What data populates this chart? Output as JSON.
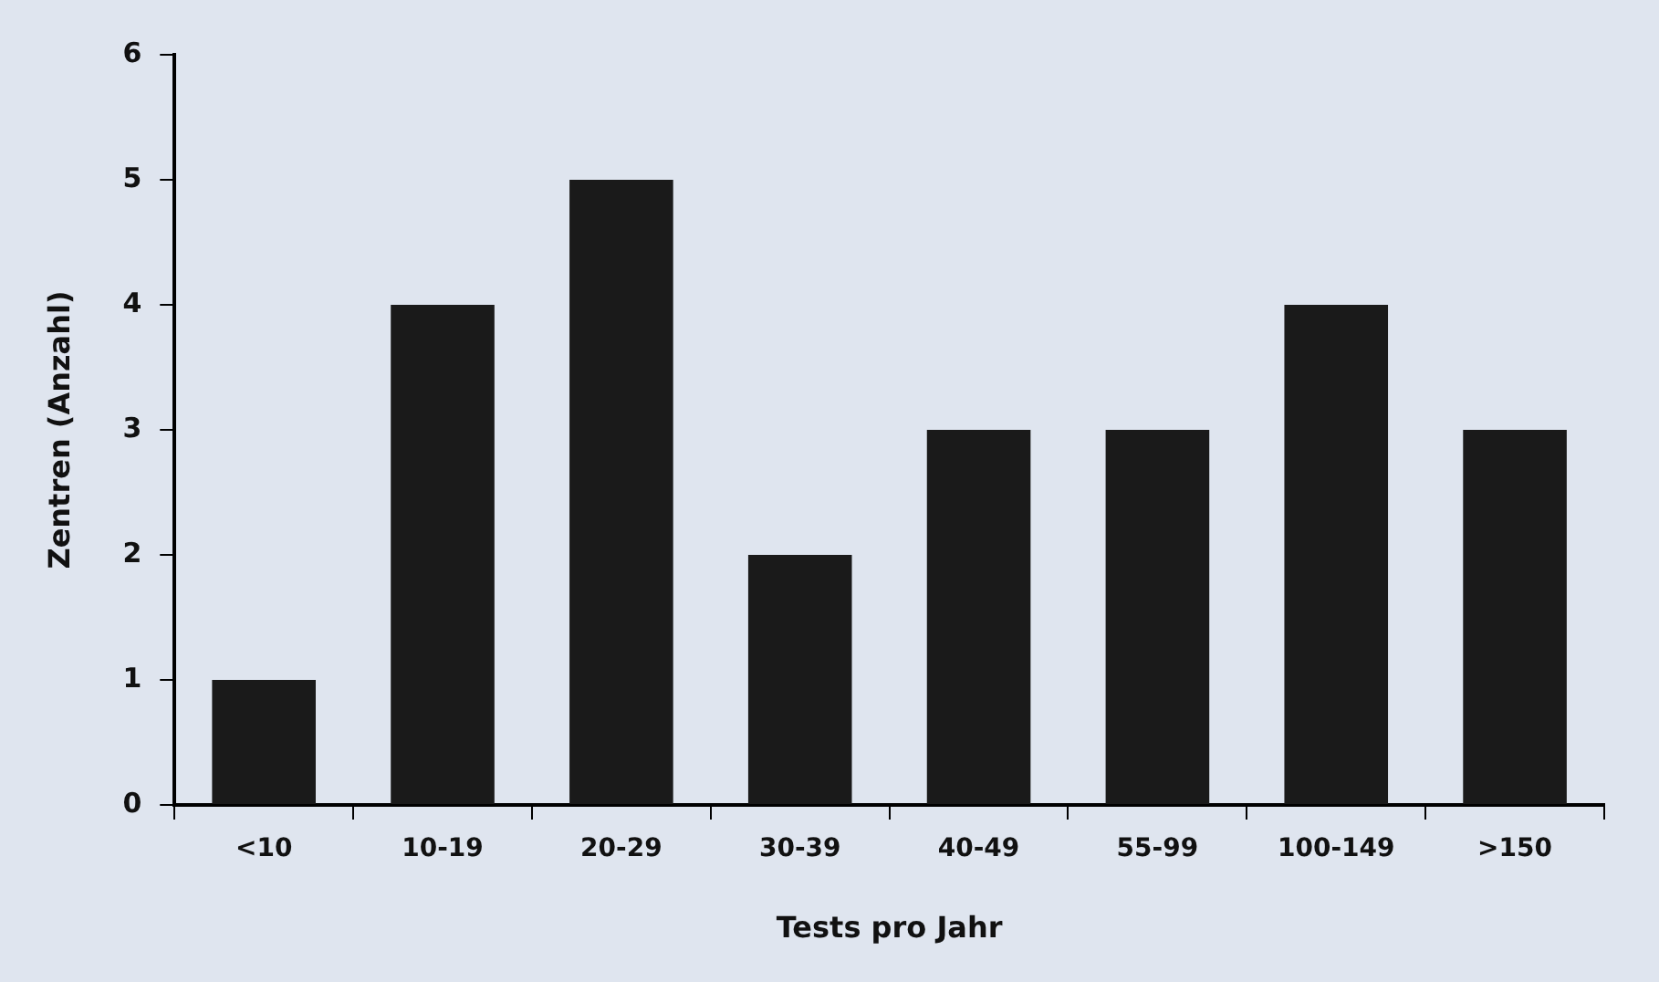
{
  "chart_data": {
    "type": "bar",
    "xlabel": "Tests pro Jahr",
    "ylabel": "Zentren (Anzahl)",
    "categories": [
      "<10",
      "10-19",
      "20-29",
      "30-39",
      "40-49",
      "55-99",
      "100-149",
      ">150"
    ],
    "values": [
      1,
      4,
      5,
      2,
      3,
      3,
      4,
      3
    ],
    "color": "#1a1a1a",
    "ylim": [
      0,
      6
    ],
    "yticks": [
      0,
      1,
      2,
      3,
      4,
      5,
      6
    ],
    "grid": false,
    "legend": false
  }
}
